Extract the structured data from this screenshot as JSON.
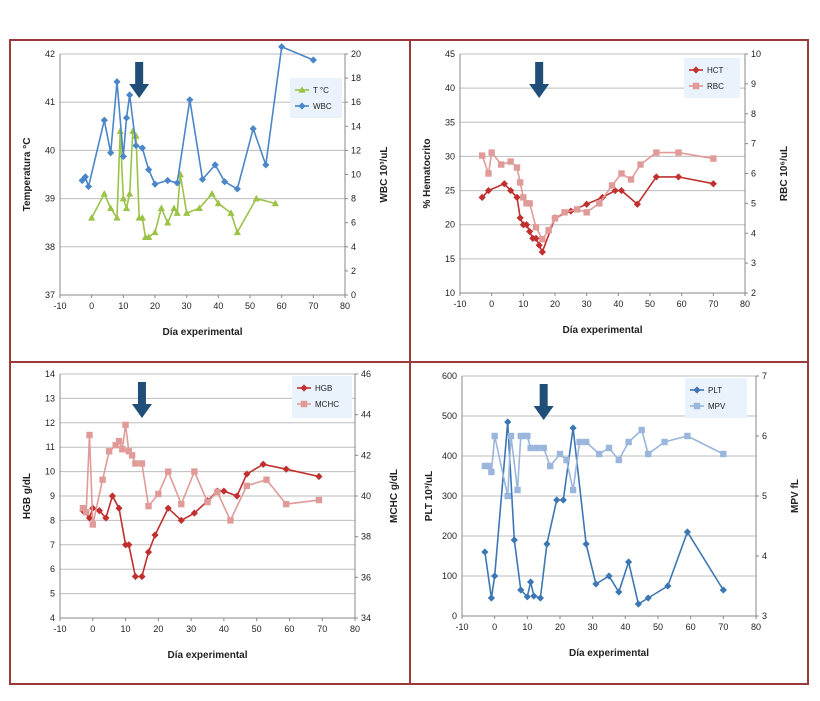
{
  "colors": {
    "frame": "#9b3a3a",
    "grid": "#bdbdbd",
    "axis": "#888888",
    "arrow": "#1f4e79",
    "blue": "#4a86c8",
    "green": "#9bc348",
    "darkred": "#c0302f",
    "pink": "#e09b98",
    "steel": "#3d77b3",
    "lightblue": "#9ab6dc",
    "legend_bg": "#eaf2fb"
  },
  "chart_data": [
    {
      "id": "p1",
      "type": "line",
      "xlabel": "Día experimental",
      "ylabel": "Temperatura  °C",
      "y2label": "WBC 10³/uL",
      "xlim": [
        -10,
        80
      ],
      "xticks": [
        "-10",
        "0",
        "10",
        "20",
        "30",
        "40",
        "50",
        "60",
        "70",
        "80"
      ],
      "ylim": [
        37,
        42
      ],
      "yticks": [
        "37",
        "38",
        "39",
        "40",
        "41",
        "42"
      ],
      "y2lim": [
        0,
        20
      ],
      "y2ticks": [
        "0",
        "2",
        "4",
        "6",
        "8",
        "10",
        "12",
        "14",
        "16",
        "18",
        "20"
      ],
      "arrow_x": 15,
      "legend": [
        {
          "name": "T °C",
          "color": "green",
          "marker": "triangle"
        },
        {
          "name": "WBC",
          "color": "blue",
          "marker": "diamond"
        }
      ],
      "series": [
        {
          "name": "T °C",
          "axis": "left",
          "color": "green",
          "marker": "triangle",
          "x": [
            0,
            4,
            6,
            8,
            9,
            10,
            11,
            12,
            13,
            14,
            15,
            16,
            17,
            18,
            20,
            22,
            24,
            26,
            27,
            28,
            30,
            34,
            38,
            40,
            44,
            46,
            52,
            58
          ],
          "y": [
            38.6,
            39.1,
            38.8,
            38.6,
            40.4,
            39,
            38.8,
            39.1,
            40.4,
            40.3,
            38.6,
            38.6,
            38.2,
            38.2,
            38.3,
            38.8,
            38.5,
            38.8,
            38.7,
            39.5,
            38.7,
            38.8,
            39.1,
            38.9,
            38.7,
            38.3,
            39,
            38.9
          ]
        },
        {
          "name": "WBC",
          "axis": "right",
          "color": "blue",
          "marker": "diamond",
          "x": [
            -3,
            -2,
            -1,
            4,
            6,
            8,
            10,
            11,
            12,
            14,
            16,
            18,
            20,
            24,
            27,
            31,
            35,
            39,
            42,
            46,
            51,
            55,
            60,
            70
          ],
          "y": [
            9.5,
            9.8,
            9,
            14.5,
            11.8,
            17.7,
            11.5,
            14.7,
            16.6,
            12.4,
            12.2,
            10.4,
            9.2,
            9.5,
            9.3,
            16.2,
            9.6,
            10.8,
            9.4,
            8.8,
            13.8,
            10.8,
            20.6,
            19.5
          ]
        }
      ]
    },
    {
      "id": "p2",
      "type": "line",
      "xlabel": "Día experimental",
      "ylabel": "% Hematocrito",
      "y2label": "RBC 10⁶/uL",
      "xlim": [
        -10,
        80
      ],
      "xticks": [
        "-10",
        "0",
        "10",
        "20",
        "30",
        "40",
        "50",
        "60",
        "70",
        "80"
      ],
      "ylim": [
        10,
        45
      ],
      "yticks": [
        "10",
        "15",
        "20",
        "25",
        "30",
        "35",
        "40",
        "45"
      ],
      "y2lim": [
        2,
        10
      ],
      "y2ticks": [
        "2",
        "3",
        "4",
        "5",
        "6",
        "7",
        "8",
        "9",
        "10"
      ],
      "arrow_x": 15,
      "legend": [
        {
          "name": "HCT",
          "color": "darkred",
          "marker": "diamond"
        },
        {
          "name": "RBC",
          "color": "pink",
          "marker": "square"
        }
      ],
      "series": [
        {
          "name": "HCT",
          "axis": "left",
          "color": "darkred",
          "marker": "diamond",
          "x": [
            -3,
            -1,
            4,
            6,
            8,
            9,
            10,
            11,
            12,
            13,
            14,
            15,
            16,
            20,
            25,
            30,
            35,
            39,
            41,
            46,
            52,
            59,
            70
          ],
          "y": [
            24,
            25,
            26,
            25,
            24,
            21,
            20,
            20,
            19,
            18,
            18,
            17,
            16,
            21,
            22,
            23,
            24,
            25,
            25,
            23,
            27,
            27,
            26
          ]
        },
        {
          "name": "RBC",
          "axis": "right",
          "color": "pink",
          "marker": "square",
          "x": [
            -3,
            -1,
            0,
            3,
            6,
            8,
            9,
            10,
            11,
            12,
            14,
            16,
            18,
            20,
            23,
            27,
            30,
            34,
            38,
            41,
            44,
            47,
            52,
            59,
            70
          ],
          "y": [
            6.6,
            6,
            6.7,
            6.3,
            6.4,
            6.2,
            5.7,
            5.2,
            5,
            5,
            4.2,
            3.8,
            4.1,
            4.5,
            4.7,
            4.8,
            4.7,
            5,
            5.6,
            6,
            5.8,
            6.3,
            6.7,
            6.7,
            6.5
          ]
        }
      ]
    },
    {
      "id": "p3",
      "type": "line",
      "xlabel": "Día experimental",
      "ylabel": "HGB g/dL",
      "y2label": "MCHC g/dL",
      "xlim": [
        -10,
        80
      ],
      "xticks": [
        "-10",
        "0",
        "10",
        "20",
        "30",
        "40",
        "50",
        "60",
        "70",
        "80"
      ],
      "ylim": [
        4,
        14
      ],
      "yticks": [
        "4",
        "5",
        "6",
        "7",
        "8",
        "9",
        "10",
        "11",
        "12",
        "13",
        "14"
      ],
      "y2lim": [
        34,
        46
      ],
      "y2ticks": [
        "34",
        "36",
        "38",
        "40",
        "42",
        "44",
        "46"
      ],
      "arrow_x": 15,
      "legend": [
        {
          "name": "HGB",
          "color": "darkred",
          "marker": "diamond"
        },
        {
          "name": "MCHC",
          "color": "pink",
          "marker": "square"
        }
      ],
      "series": [
        {
          "name": "HGB",
          "axis": "left",
          "color": "darkred",
          "marker": "diamond",
          "x": [
            -3,
            -1,
            0,
            2,
            4,
            6,
            8,
            10,
            11,
            13,
            15,
            17,
            19,
            23,
            27,
            31,
            35,
            38,
            40,
            44,
            47,
            52,
            59,
            69
          ],
          "y": [
            8.4,
            8.1,
            8.5,
            8.4,
            8.1,
            9,
            8.5,
            7,
            7,
            5.7,
            5.7,
            6.7,
            7.4,
            8.5,
            8,
            8.3,
            8.8,
            9.2,
            9.2,
            9,
            9.9,
            10.3,
            10.1,
            9.8
          ]
        },
        {
          "name": "MCHC",
          "axis": "right",
          "color": "pink",
          "marker": "square",
          "x": [
            -3,
            -2,
            -1,
            0,
            3,
            5,
            7,
            8,
            9,
            10,
            11,
            12,
            13,
            15,
            17,
            20,
            23,
            27,
            31,
            35,
            38,
            42,
            47,
            53,
            59,
            69
          ],
          "y": [
            39.4,
            39.2,
            43,
            38.6,
            40.8,
            42.2,
            42.5,
            42.7,
            42.3,
            43.5,
            42.2,
            42,
            41.6,
            41.6,
            39.5,
            40.1,
            41.2,
            39.6,
            41.2,
            39.7,
            40.2,
            38.8,
            40.5,
            40.8,
            39.6,
            39.8
          ]
        }
      ]
    },
    {
      "id": "p4",
      "type": "line",
      "xlabel": "Día experimental",
      "ylabel": "PLT 10³/uL",
      "y2label": "MPV fL",
      "xlim": [
        -10,
        80
      ],
      "xticks": [
        "-10",
        "0",
        "10",
        "20",
        "30",
        "40",
        "50",
        "60",
        "70",
        "80"
      ],
      "ylim": [
        0,
        600
      ],
      "yticks": [
        "0",
        "100",
        "200",
        "300",
        "400",
        "500",
        "600"
      ],
      "y2lim": [
        3,
        7
      ],
      "y2ticks": [
        "3",
        "4",
        "5",
        "6",
        "7"
      ],
      "arrow_x": 15,
      "legend": [
        {
          "name": "PLT",
          "color": "steel",
          "marker": "diamond"
        },
        {
          "name": "MPV",
          "color": "lightblue",
          "marker": "square"
        }
      ],
      "series": [
        {
          "name": "PLT",
          "axis": "left",
          "color": "steel",
          "marker": "diamond",
          "x": [
            -3,
            -1,
            0,
            4,
            6,
            8,
            10,
            11,
            12,
            14,
            16,
            19,
            21,
            24,
            28,
            31,
            35,
            38,
            41,
            44,
            47,
            53,
            59,
            70
          ],
          "y": [
            160,
            45,
            100,
            485,
            190,
            65,
            48,
            85,
            50,
            45,
            180,
            290,
            290,
            470,
            180,
            80,
            100,
            60,
            135,
            30,
            45,
            75,
            210,
            65
          ]
        },
        {
          "name": "MPV",
          "axis": "right",
          "color": "lightblue",
          "marker": "square",
          "x": [
            -3,
            -2,
            -1,
            0,
            4,
            5,
            7,
            8,
            9,
            10,
            11,
            13,
            15,
            17,
            20,
            22,
            24,
            26,
            28,
            32,
            35,
            38,
            41,
            45,
            47,
            52,
            59,
            70
          ],
          "y": [
            5.5,
            5.5,
            5.4,
            6,
            5,
            6,
            5.1,
            6,
            6,
            6,
            5.8,
            5.8,
            5.8,
            5.5,
            5.7,
            5.6,
            5.1,
            5.9,
            5.9,
            5.7,
            5.8,
            5.6,
            5.9,
            6.1,
            5.7,
            5.9,
            6,
            5.7
          ]
        }
      ]
    }
  ]
}
